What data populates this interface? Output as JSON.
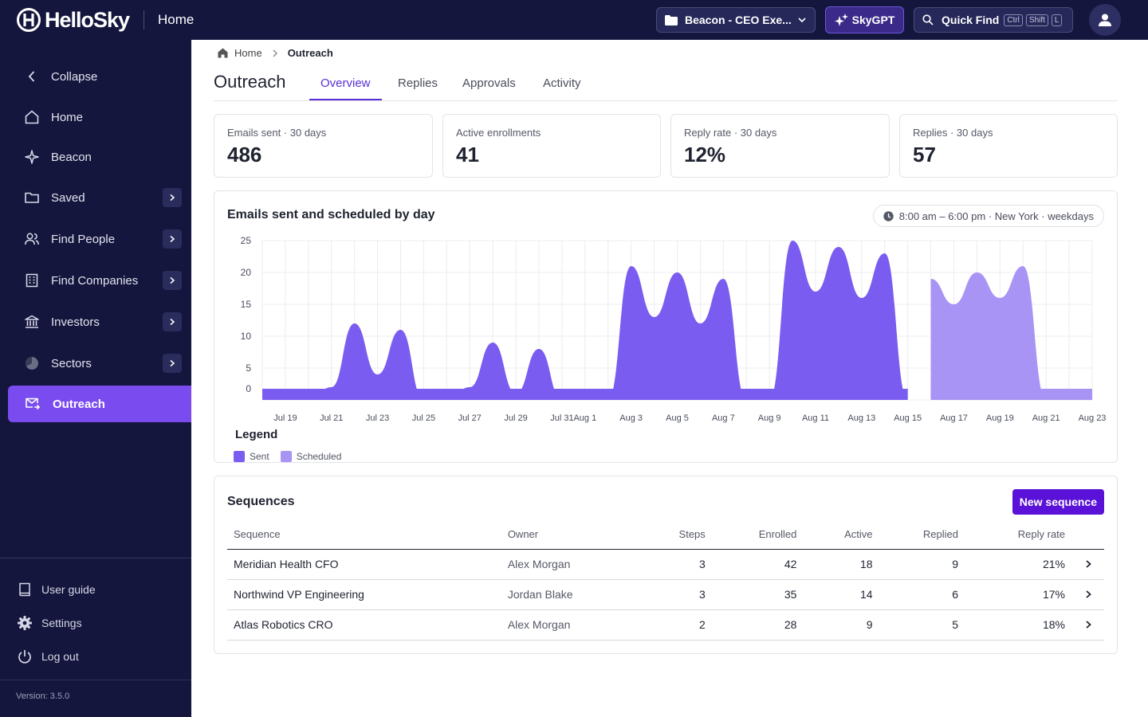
{
  "topbar": {
    "brand": "HelloSky",
    "page": "Home",
    "workspace": "Beacon - CEO Exe...",
    "skygpt": "SkyGPT",
    "quick_find": "Quick Find",
    "shortcut_keys": [
      "Ctrl",
      "Shift",
      "L"
    ]
  },
  "sidebar": {
    "collapse": "Collapse",
    "items": [
      {
        "label": "Home",
        "icon": "home-icon",
        "expandable": false
      },
      {
        "label": "Beacon",
        "icon": "sparkle-icon",
        "expandable": false
      },
      {
        "label": "Saved",
        "icon": "folder-icon",
        "expandable": true
      },
      {
        "label": "Find People",
        "icon": "people-icon",
        "expandable": true
      },
      {
        "label": "Find Companies",
        "icon": "building-icon",
        "expandable": true
      },
      {
        "label": "Investors",
        "icon": "bank-icon",
        "expandable": true
      },
      {
        "label": "Sectors",
        "icon": "pie-icon",
        "expandable": true
      },
      {
        "label": "Outreach",
        "icon": "mail-icon",
        "expandable": false,
        "active": true
      }
    ],
    "footer": [
      {
        "label": "User guide",
        "icon": "book-icon"
      },
      {
        "label": "Settings",
        "icon": "gear-icon"
      },
      {
        "label": "Log out",
        "icon": "power-icon"
      }
    ],
    "version": "Version: 3.5.0"
  },
  "breadcrumb": {
    "home": "Home",
    "current": "Outreach"
  },
  "page_title": "Outreach",
  "tabs": [
    "Overview",
    "Replies",
    "Approvals",
    "Activity"
  ],
  "active_tab": "Overview",
  "kpis": [
    {
      "label": "Emails sent · 30 days",
      "value": "486"
    },
    {
      "label": "Active enrollments",
      "value": "41"
    },
    {
      "label": "Reply rate · 30 days",
      "value": "12%"
    },
    {
      "label": "Replies · 30 days",
      "value": "57"
    }
  ],
  "chart": {
    "title": "Emails sent and scheduled by day",
    "hours": "8:00 am – 6:00 pm · New York · weekdays",
    "legend_title": "Legend"
  },
  "colors": {
    "sent": "#7b5cf0",
    "scheduled": "#a894f5",
    "accent": "#5a12d8",
    "nav_active": "#7a4cf0",
    "sidebar_bg": "#15163d"
  },
  "chart_data": {
    "type": "area",
    "x": [
      "Jul 18",
      "Jul 19",
      "Jul 20",
      "Jul 21",
      "Jul 22",
      "Jul 23",
      "Jul 24",
      "Jul 25",
      "Jul 26",
      "Jul 27",
      "Jul 28",
      "Jul 29",
      "Jul 30",
      "Jul 31",
      "Aug 1",
      "Aug 2",
      "Aug 3",
      "Aug 4",
      "Aug 5",
      "Aug 6",
      "Aug 7",
      "Aug 8",
      "Aug 9",
      "Aug 10",
      "Aug 11",
      "Aug 12",
      "Aug 13",
      "Aug 14",
      "Aug 15",
      "Aug 16",
      "Aug 17",
      "Aug 18",
      "Aug 19",
      "Aug 20",
      "Aug 21",
      "Aug 22",
      "Aug 23"
    ],
    "x_tick_labels": [
      "Jul 19",
      "Jul 21",
      "Jul 23",
      "Jul 25",
      "Jul 27",
      "Jul 29",
      "Jul 31",
      "Aug 1",
      "Aug 3",
      "Aug 5",
      "Aug 7",
      "Aug 9",
      "Aug 11",
      "Aug 13",
      "Aug 15",
      "Aug 17",
      "Aug 19",
      "Aug 21",
      "Aug 23"
    ],
    "series": [
      {
        "name": "Sent",
        "values": [
          0,
          0,
          0,
          2,
          12,
          4,
          11,
          0,
          0,
          2,
          9,
          1,
          8,
          0,
          0,
          0,
          21,
          13,
          20,
          12,
          19,
          0,
          0,
          25,
          17,
          24,
          16,
          23,
          0,
          null,
          null,
          null,
          null,
          null,
          null,
          null,
          null
        ]
      },
      {
        "name": "Scheduled",
        "values": [
          null,
          null,
          null,
          null,
          null,
          null,
          null,
          null,
          null,
          null,
          null,
          null,
          null,
          null,
          null,
          null,
          null,
          null,
          null,
          null,
          null,
          null,
          null,
          null,
          null,
          null,
          null,
          null,
          null,
          19,
          15,
          20,
          16,
          21,
          0,
          0,
          0
        ]
      }
    ],
    "ylim": [
      0,
      25
    ],
    "yticks": [
      0,
      5,
      10,
      15,
      20,
      25
    ],
    "grid": true,
    "legend": "bottom-left"
  },
  "sequences": {
    "title": "Sequences",
    "new_button": "New sequence",
    "columns": [
      "Sequence",
      "Owner",
      "Steps",
      "Enrolled",
      "Active",
      "Replied",
      "Reply rate"
    ],
    "rows": [
      {
        "name": "Meridian Health CFO",
        "owner": "Alex Morgan",
        "steps": "3",
        "enrolled": "42",
        "active": "18",
        "replied": "9",
        "rate": "21%"
      },
      {
        "name": "Northwind VP Engineering",
        "owner": "Jordan Blake",
        "steps": "3",
        "enrolled": "35",
        "active": "14",
        "replied": "6",
        "rate": "17%"
      },
      {
        "name": "Atlas Robotics CRO",
        "owner": "Alex Morgan",
        "steps": "2",
        "enrolled": "28",
        "active": "9",
        "replied": "5",
        "rate": "18%"
      }
    ]
  }
}
